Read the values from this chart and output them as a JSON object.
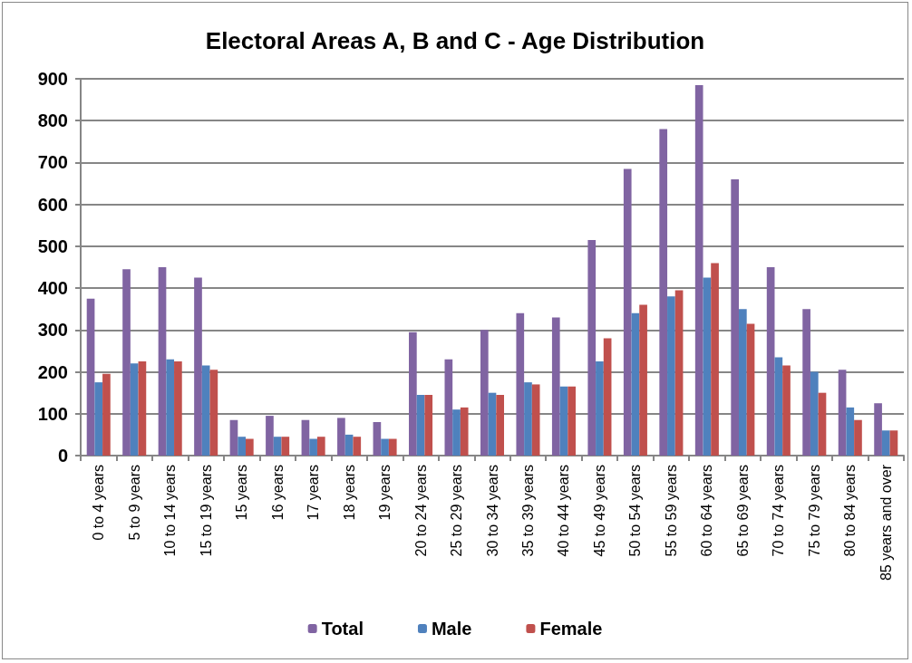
{
  "chart_data": {
    "type": "bar",
    "title": "Electoral Areas A, B and C - Age Distribution",
    "categories": [
      "0 to 4 years",
      "5 to 9 years",
      "10 to 14 years",
      "15 to 19 years",
      "15 years",
      "16 years",
      "17 years",
      "18 years",
      "19 years",
      "20 to 24 years",
      "25 to 29 years",
      "30 to 34 years",
      "35 to 39 years",
      "40 to 44 years",
      "45 to 49 years",
      "50 to 54 years",
      "55 to 59 years",
      "60 to 64 years",
      "65 to 69 years",
      "70 to 74 years",
      "75 to 79 years",
      "80 to 84 years",
      "85 years and over"
    ],
    "series": [
      {
        "name": "Total",
        "color": "#8064a2",
        "values": [
          375,
          445,
          450,
          425,
          85,
          95,
          85,
          90,
          80,
          295,
          230,
          300,
          340,
          330,
          515,
          685,
          780,
          885,
          660,
          450,
          350,
          205,
          125
        ]
      },
      {
        "name": "Male",
        "color": "#4f81bd",
        "values": [
          175,
          220,
          230,
          215,
          45,
          45,
          40,
          50,
          40,
          145,
          110,
          150,
          175,
          165,
          225,
          340,
          380,
          425,
          350,
          235,
          200,
          115,
          60
        ]
      },
      {
        "name": "Female",
        "color": "#c0504d",
        "values": [
          195,
          225,
          225,
          205,
          40,
          45,
          45,
          45,
          40,
          145,
          115,
          145,
          170,
          165,
          280,
          360,
          395,
          460,
          315,
          215,
          150,
          85,
          60
        ]
      }
    ],
    "ylim": [
      0,
      900
    ],
    "yticks": [
      0,
      100,
      200,
      300,
      400,
      500,
      600,
      700,
      800,
      900
    ],
    "grid": "y",
    "legend": "bottom"
  }
}
